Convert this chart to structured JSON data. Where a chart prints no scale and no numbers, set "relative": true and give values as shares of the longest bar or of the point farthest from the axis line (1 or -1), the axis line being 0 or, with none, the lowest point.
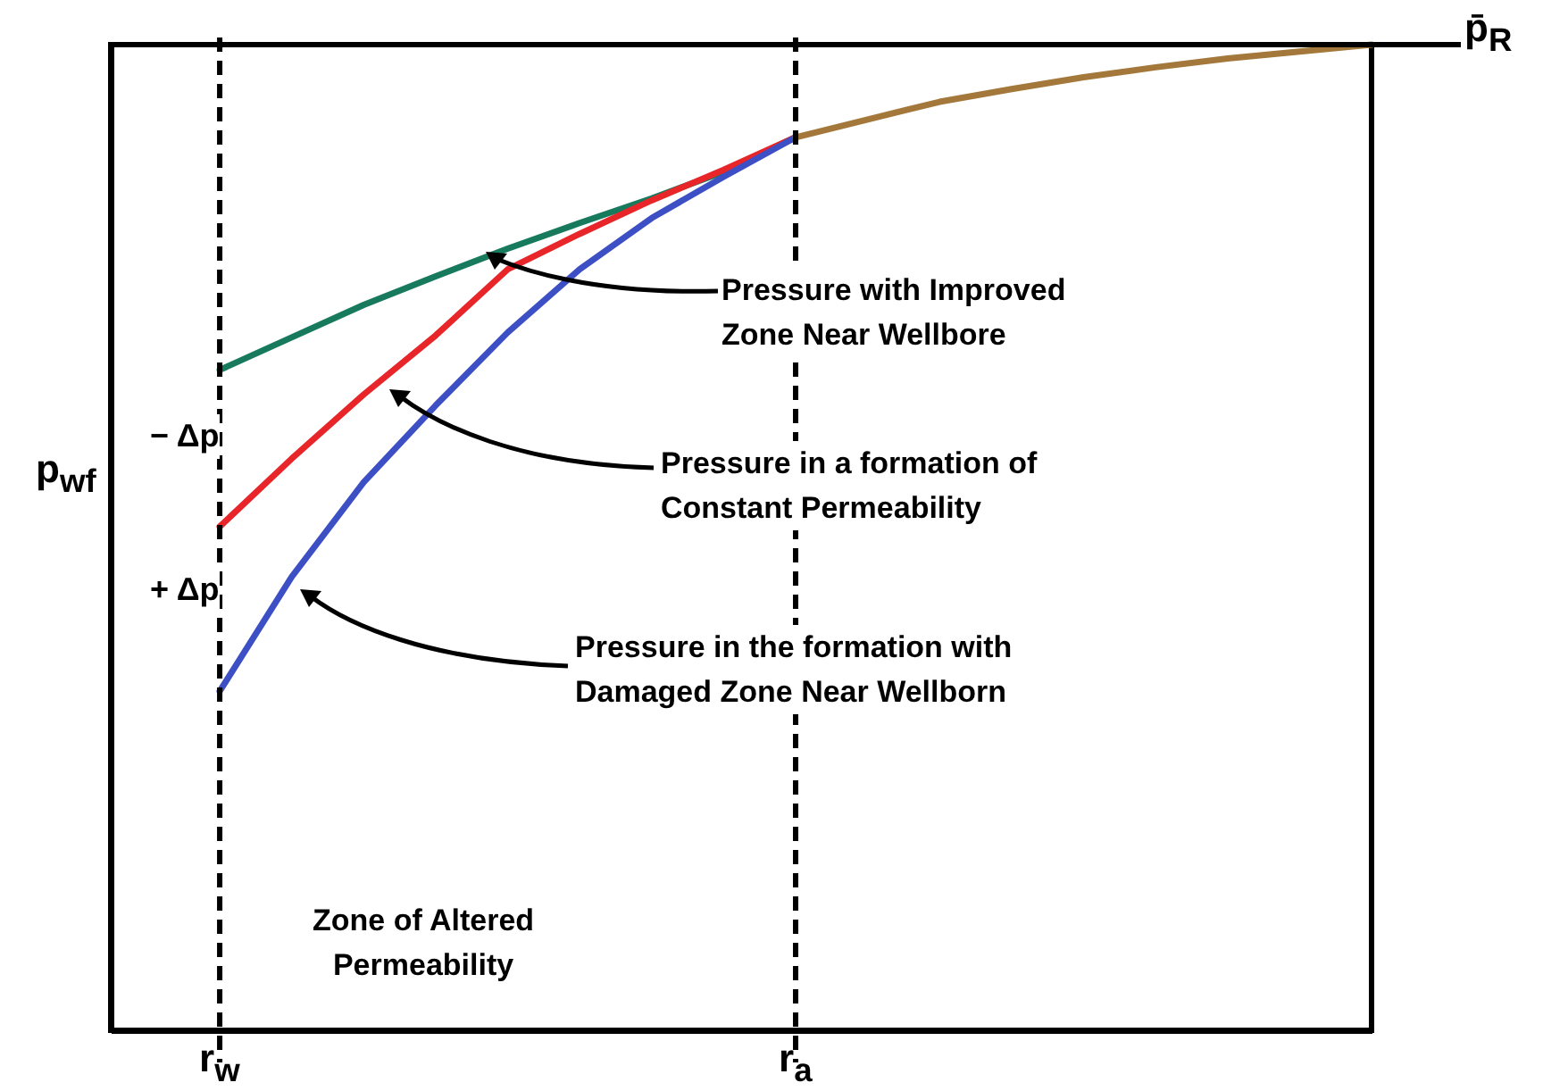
{
  "chart_data": {
    "type": "line",
    "relative": true,
    "ylabel": "p$_{wf}$",
    "categories": [
      "r$_{w}$",
      null,
      null,
      null,
      null,
      null,
      null,
      null,
      "r$_{a}$",
      null,
      null,
      null,
      null,
      null,
      null,
      null,
      null
    ],
    "tick_labels": "x",
    "marker": "none",
    "line_style": "solid",
    "series": [
      {
        "color": "#177a5c",
        "values": [
          0.67,
          0.703,
          0.736,
          0.765,
          0.793,
          0.819,
          0.844,
          0.871,
          0.906,
          null,
          null,
          null,
          null,
          null,
          null,
          null,
          null
        ]
      },
      {
        "color": "#e8262a",
        "values": [
          0.511,
          0.58,
          0.645,
          0.705,
          0.772,
          0.808,
          0.842,
          0.873,
          0.906,
          null,
          null,
          null,
          null,
          null,
          null,
          null,
          null
        ]
      },
      {
        "color": "#3d4fc4",
        "values": [
          0.344,
          0.46,
          0.556,
          0.634,
          0.708,
          0.772,
          0.824,
          0.866,
          0.906,
          null,
          null,
          null,
          null,
          null,
          null,
          null,
          null
        ]
      },
      {
        "color": "#a3783a",
        "values": [
          null,
          null,
          null,
          null,
          null,
          null,
          null,
          null,
          0.906,
          0.924,
          0.942,
          0.955,
          0.967,
          0.977,
          0.986,
          0.993,
          1.0
        ]
      }
    ],
    "ref_lines": [
      {
        "axis": "x",
        "value": "r$_{w}$",
        "line_style": "dashed"
      },
      {
        "axis": "x",
        "value": "r$_{a}$",
        "line_style": "dashed"
      },
      {
        "axis": "y",
        "value": 1,
        "label": "p̄$_{R}$",
        "line_style": "solid"
      }
    ],
    "annotations": [
      "− Δp",
      "+ Δp",
      "Pressure with Improved\nZone Near Wellbore",
      "Pressure in a formation of\nConstant Permeability",
      "Pressure in the formation with\nDamaged Zone Near Wellborn",
      "Zone of Altered\nPermeability"
    ]
  }
}
